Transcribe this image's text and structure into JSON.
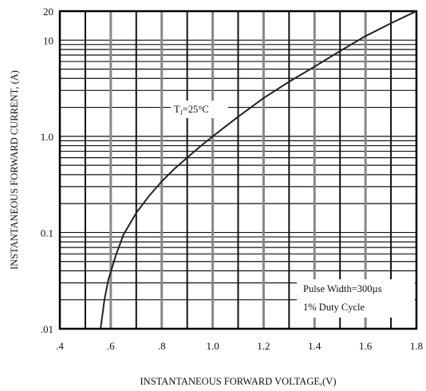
{
  "chart_data": {
    "type": "line",
    "title": "",
    "xlabel": "INSTANTANEOUS FORWARD VOLTAGE,(V)",
    "ylabel": "INSTANTANEOUS FORWARD CURRENT, (A)",
    "x_scale": "linear",
    "y_scale": "log",
    "xlim": [
      0.4,
      1.8
    ],
    "ylim": [
      0.01,
      20
    ],
    "x_ticks": [
      ".4",
      ".6",
      ".8",
      "1.0",
      "1.2",
      "1.4",
      "1.6",
      "1.8"
    ],
    "y_ticks": [
      {
        "value": 0.01,
        "label": ".01"
      },
      {
        "value": 0.1,
        "label": "0.1"
      },
      {
        "value": 1,
        "label": "1.0"
      },
      {
        "value": 10,
        "label": "10"
      },
      {
        "value": 20,
        "label": "20"
      }
    ],
    "grid": true,
    "series": [
      {
        "points": [
          [
            0.56,
            0.01
          ],
          [
            0.575,
            0.02
          ],
          [
            0.59,
            0.032
          ],
          [
            0.62,
            0.058
          ],
          [
            0.65,
            0.095
          ],
          [
            0.7,
            0.16
          ],
          [
            0.75,
            0.24
          ],
          [
            0.8,
            0.34
          ],
          [
            0.85,
            0.46
          ],
          [
            0.9,
            0.6
          ],
          [
            0.95,
            0.78
          ],
          [
            1.0,
            1.0
          ],
          [
            1.1,
            1.6
          ],
          [
            1.2,
            2.5
          ],
          [
            1.3,
            3.7
          ],
          [
            1.4,
            5.3
          ],
          [
            1.5,
            7.7
          ],
          [
            1.6,
            11
          ],
          [
            1.7,
            15
          ],
          [
            1.8,
            20
          ]
        ],
        "color": "#222222"
      }
    ],
    "annotations": {
      "condition_main": "T",
      "condition_sub": "J",
      "condition_rest": "=25°C",
      "pulse_width": "Pulse Width=300µs",
      "duty_cycle": "1% Duty Cycle"
    }
  }
}
